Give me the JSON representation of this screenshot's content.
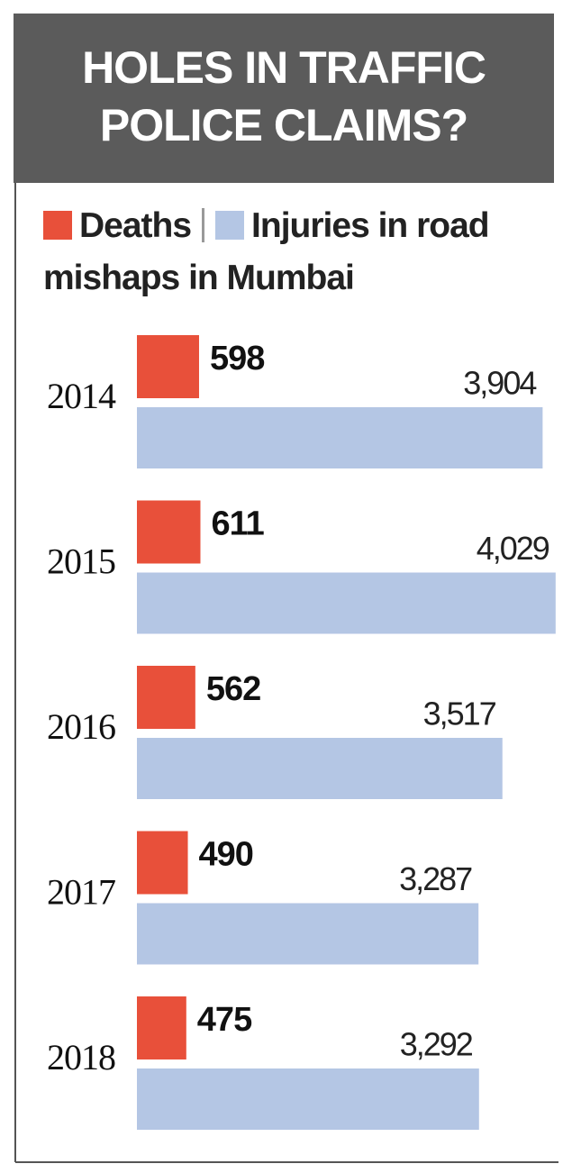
{
  "chart_data": {
    "type": "bar",
    "orientation": "horizontal",
    "title": "HOLES IN TRAFFIC POLICE CLAIMS?",
    "categories": [
      "2014",
      "2015",
      "2016",
      "2017",
      "2018"
    ],
    "series": [
      {
        "name": "Deaths",
        "color": "#e8503a",
        "values": [
          598,
          611,
          562,
          490,
          475
        ]
      },
      {
        "name": "Injuries in road mishaps in Mumbai",
        "color": "#b4c6e4",
        "values": [
          3904,
          4029,
          3517,
          3287,
          3292
        ],
        "value_labels": [
          "3,904",
          "4,029",
          "3,517",
          "3,287",
          "3,292"
        ]
      }
    ],
    "xlim": [
      0,
      4100
    ]
  }
}
